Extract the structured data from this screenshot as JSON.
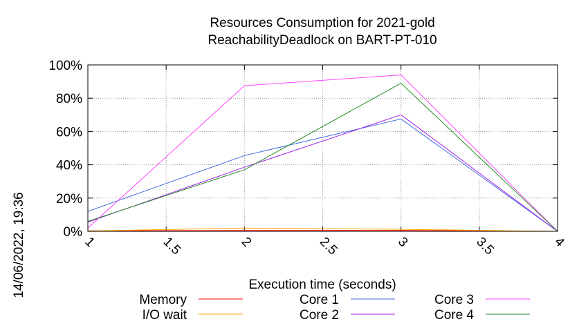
{
  "chart_data": {
    "type": "line",
    "title": "Resources Consumption for 2021-gold",
    "subtitle": "ReachabilityDeadlock on BART-PT-010",
    "xlabel": "Execution time (seconds)",
    "ylabel": "",
    "side_label": "14/06/2022, 19:36",
    "xlim": [
      1,
      4
    ],
    "ylim": [
      0,
      100
    ],
    "x_ticks": [
      1,
      1.5,
      2,
      2.5,
      3,
      3.5,
      4
    ],
    "x_tick_labels": [
      "1",
      "1.5",
      "2",
      "2.5",
      "3",
      "3.5",
      "4"
    ],
    "y_ticks": [
      0,
      20,
      40,
      60,
      80,
      100
    ],
    "y_tick_labels": [
      "0%",
      "20%",
      "40%",
      "60%",
      "80%",
      "100%"
    ],
    "grid": true,
    "legend_position": "bottom",
    "series": [
      {
        "name": "Memory",
        "color": "#ff0000",
        "x": [
          1,
          2,
          3,
          4
        ],
        "y": [
          0.3,
          0.5,
          0.6,
          0
        ]
      },
      {
        "name": "I/O wait",
        "color": "#ffa500",
        "x": [
          1,
          2,
          3,
          4
        ],
        "y": [
          0.2,
          2.0,
          1.2,
          0
        ]
      },
      {
        "name": "Core 1",
        "color": "#4169e1",
        "x": [
          1,
          2,
          3,
          4
        ],
        "y": [
          12,
          45.5,
          67.5,
          0
        ]
      },
      {
        "name": "Core 2",
        "color": "#a020f0",
        "x": [
          1,
          2,
          3,
          4
        ],
        "y": [
          5.5,
          38.5,
          70,
          0
        ]
      },
      {
        "name": "Core 3",
        "color": "#ff44ff",
        "x": [
          1,
          2,
          3,
          4
        ],
        "y": [
          2,
          87.5,
          94,
          0
        ]
      },
      {
        "name": "Core 4",
        "color": "#228b22",
        "x": [
          1,
          2,
          3,
          4
        ],
        "y": [
          6,
          37,
          89,
          0
        ]
      }
    ]
  }
}
